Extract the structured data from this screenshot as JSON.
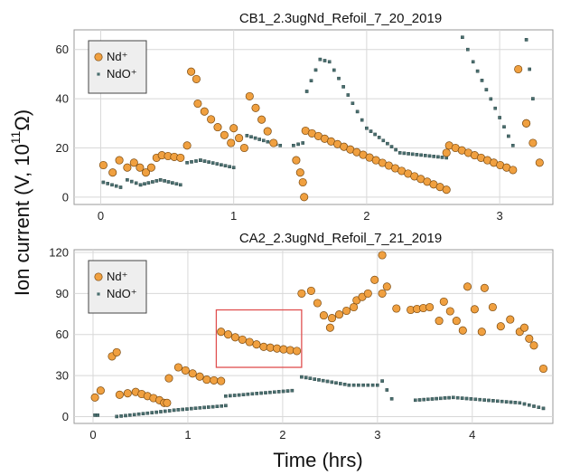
{
  "colors": {
    "nd": "#f0a040",
    "nd_edge": "#7a4a10",
    "ndo": "#4a6f6f",
    "grid": "#d8d8d8",
    "frame": "#999999",
    "highlight": "#e05050"
  },
  "labels": {
    "ylabel_main": "Ion current (V, 10",
    "ylabel_exp": "11",
    "ylabel_unit": "Ω)",
    "xlabel": "Time (hrs)"
  },
  "chart_data": [
    {
      "type": "scatter",
      "title": "CB1_2.3ugNd_Refoil_7_20_2019",
      "xlim": [
        -0.2,
        3.4
      ],
      "ylim": [
        -3,
        68
      ],
      "xticks": [
        0,
        1,
        2,
        3
      ],
      "yticks": [
        0,
        20,
        40,
        60
      ],
      "grid": true,
      "legend": {
        "position": "top-left",
        "entries": [
          "Nd⁺",
          "NdO⁺"
        ]
      },
      "series": [
        {
          "name": "Nd⁺",
          "marker": "circle",
          "segments": [
            [
              [
                0.02,
                13
              ],
              [
                0.09,
                10
              ]
            ],
            [
              [
                0.14,
                15
              ],
              [
                0.2,
                12
              ]
            ],
            [
              [
                0.25,
                14
              ],
              [
                0.34,
                10
              ]
            ],
            [
              [
                0.38,
                12
              ],
              [
                0.42,
                16
              ]
            ],
            [
              [
                0.46,
                17
              ],
              [
                0.6,
                16
              ]
            ],
            [
              [
                0.65,
                21
              ]
            ],
            [
              [
                0.68,
                51
              ],
              [
                0.72,
                48
              ]
            ],
            [
              [
                0.73,
                38
              ],
              [
                0.98,
                22
              ]
            ],
            [
              [
                1.0,
                28
              ],
              [
                1.08,
                20
              ]
            ],
            [
              [
                1.12,
                41
              ],
              [
                1.3,
                22
              ]
            ],
            [
              [
                1.47,
                15
              ],
              [
                1.5,
                10
              ]
            ],
            [
              [
                1.52,
                6
              ],
              [
                1.53,
                0
              ]
            ],
            [
              [
                1.54,
                27
              ],
              [
                2.6,
                3
              ]
            ],
            [
              [
                2.6,
                18
              ],
              [
                2.62,
                21
              ],
              [
                3.1,
                11
              ]
            ],
            [
              [
                3.14,
                52
              ],
              [
                3.2,
                30
              ]
            ],
            [
              [
                3.2,
                30
              ],
              [
                3.3,
                14
              ]
            ]
          ]
        },
        {
          "name": "NdO⁺",
          "marker": "square",
          "segments": [
            [
              [
                0.02,
                6
              ],
              [
                0.15,
                4
              ]
            ],
            [
              [
                0.2,
                7
              ],
              [
                0.3,
                5
              ]
            ],
            [
              [
                0.3,
                5
              ],
              [
                0.45,
                7
              ]
            ],
            [
              [
                0.45,
                7
              ],
              [
                0.6,
                5
              ]
            ],
            [
              [
                0.65,
                14
              ],
              [
                0.75,
                15
              ]
            ],
            [
              [
                0.75,
                15
              ],
              [
                1.0,
                12
              ]
            ],
            [
              [
                1.1,
                25
              ],
              [
                1.35,
                21
              ]
            ],
            [
              [
                1.45,
                21
              ],
              [
                1.52,
                22
              ]
            ],
            [
              [
                1.55,
                43
              ],
              [
                1.65,
                56
              ],
              [
                1.72,
                55
              ],
              [
                2.0,
                28
              ],
              [
                2.25,
                18
              ],
              [
                2.6,
                16
              ]
            ],
            [
              [
                2.72,
                65
              ],
              [
                2.8,
                55
              ],
              [
                3.1,
                21
              ]
            ],
            [
              [
                3.2,
                64
              ],
              [
                3.25,
                40
              ]
            ]
          ]
        }
      ]
    },
    {
      "type": "scatter",
      "title": "CA2_2.3ugNd_Refoil_7_21_2019",
      "xlim": [
        -0.2,
        4.85
      ],
      "ylim": [
        -5,
        122
      ],
      "xticks": [
        0,
        1,
        2,
        3,
        4
      ],
      "yticks": [
        0,
        30,
        60,
        90,
        120
      ],
      "grid": true,
      "legend": {
        "position": "top-left",
        "entries": [
          "Nd⁺",
          "NdO⁺"
        ]
      },
      "highlight_box": {
        "x": [
          1.3,
          2.2
        ],
        "y": [
          36,
          78
        ]
      },
      "series": [
        {
          "name": "Nd⁺",
          "marker": "circle",
          "segments": [
            [
              [
                0.02,
                14
              ],
              [
                0.08,
                19
              ]
            ],
            [
              [
                0.2,
                44
              ],
              [
                0.25,
                47
              ]
            ],
            [
              [
                0.28,
                16
              ],
              [
                0.45,
                18
              ],
              [
                0.7,
                12
              ]
            ],
            [
              [
                0.75,
                10
              ],
              [
                0.78,
                10
              ]
            ],
            [
              [
                0.8,
                28
              ],
              [
                0.9,
                36
              ],
              [
                1.2,
                27
              ],
              [
                1.35,
                26
              ]
            ],
            [
              [
                1.35,
                62
              ],
              [
                1.5,
                58
              ],
              [
                1.8,
                51
              ],
              [
                2.15,
                48
              ]
            ],
            [
              [
                2.2,
                90
              ],
              [
                2.3,
                92
              ],
              [
                2.5,
                65
              ]
            ],
            [
              [
                2.52,
                72
              ],
              [
                2.75,
                80
              ]
            ],
            [
              [
                2.78,
                85
              ],
              [
                2.9,
                90
              ]
            ],
            [
              [
                2.97,
                100
              ],
              [
                3.05,
                90
              ]
            ],
            [
              [
                3.05,
                118
              ],
              [
                3.1,
                95
              ],
              [
                3.2,
                79
              ]
            ],
            [
              [
                3.35,
                78
              ],
              [
                3.55,
                80
              ],
              [
                3.65,
                70
              ]
            ],
            [
              [
                3.7,
                84
              ],
              [
                3.9,
                63
              ]
            ],
            [
              [
                3.95,
                95
              ],
              [
                4.1,
                62
              ]
            ],
            [
              [
                4.13,
                94
              ],
              [
                4.3,
                66
              ]
            ],
            [
              [
                4.4,
                71
              ],
              [
                4.5,
                62
              ]
            ],
            [
              [
                4.55,
                65
              ],
              [
                4.6,
                57
              ]
            ],
            [
              [
                4.65,
                52
              ],
              [
                4.75,
                35
              ]
            ]
          ]
        },
        {
          "name": "NdO⁺",
          "marker": "square",
          "segments": [
            [
              [
                0.02,
                1
              ],
              [
                0.05,
                1
              ]
            ],
            [
              [
                0.25,
                0
              ],
              [
                0.9,
                5
              ],
              [
                1.4,
                8
              ]
            ],
            [
              [
                1.4,
                15
              ],
              [
                2.1,
                19
              ]
            ],
            [
              [
                2.2,
                29
              ],
              [
                2.7,
                23
              ],
              [
                3.0,
                23
              ]
            ],
            [
              [
                3.05,
                26
              ],
              [
                3.15,
                13
              ]
            ],
            [
              [
                3.4,
                12
              ],
              [
                3.8,
                14
              ],
              [
                4.5,
                10
              ],
              [
                4.75,
                6
              ]
            ]
          ]
        }
      ]
    }
  ]
}
